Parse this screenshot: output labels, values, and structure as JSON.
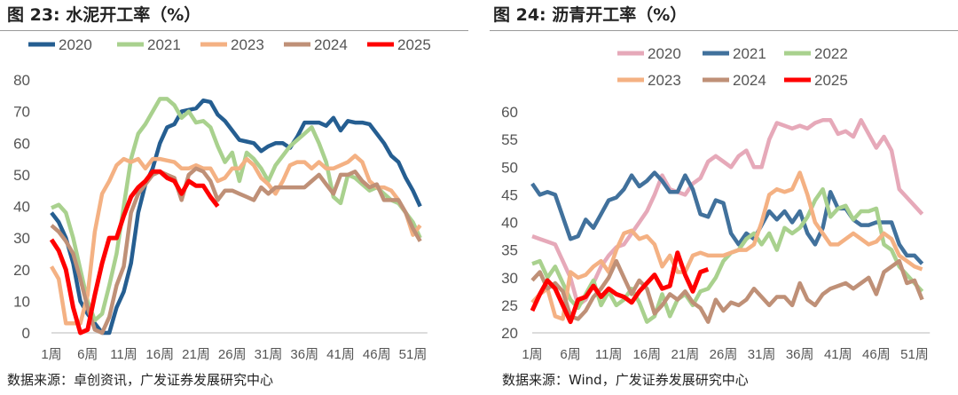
{
  "charts": [
    {
      "title": "图 23:  水泥开工率（%）",
      "source": "数据来源：卓创资讯，广发证券发展研究中心"
    },
    {
      "title": "图 24:  沥青开工率（%）",
      "source": "数据来源：Wind，广发证券发展研究中心"
    }
  ],
  "chart_data": [
    {
      "type": "line",
      "title": "图 23:  水泥开工率（%）",
      "ylim": [
        0,
        80
      ],
      "yticks": [
        0,
        10,
        20,
        30,
        40,
        50,
        60,
        70,
        80
      ],
      "xticks": [
        "1周",
        "6周",
        "11周",
        "16周",
        "21周",
        "26周",
        "31周",
        "36周",
        "41周",
        "46周",
        "51周"
      ],
      "legend": "top",
      "series": [
        {
          "name": "2020",
          "color": "#255e91",
          "values": [
            38,
            35,
            30,
            22,
            10,
            6,
            3,
            0,
            0,
            8,
            13,
            22,
            38,
            47,
            52,
            60,
            65,
            66,
            70,
            70.5,
            71,
            73.5,
            73,
            69,
            67,
            64,
            61,
            60.5,
            60,
            57.5,
            59,
            60,
            60,
            58.5,
            62,
            66.5,
            66.5,
            66.5,
            65.5,
            68,
            64,
            67,
            66.5,
            66.5,
            66,
            63,
            60,
            56,
            54,
            49,
            45,
            40
          ]
        },
        {
          "name": "2021",
          "color": "#a9d18e",
          "values": [
            39.5,
            40.5,
            38,
            30,
            20,
            10,
            4,
            6,
            15,
            25,
            40,
            55,
            63,
            66,
            70,
            74,
            74,
            72,
            68,
            70,
            66.5,
            67,
            65,
            59,
            54,
            57,
            48,
            57,
            55,
            52,
            48,
            53,
            56,
            59,
            61,
            63,
            65,
            60,
            54,
            43,
            41,
            50,
            49,
            47,
            45,
            46,
            44,
            42,
            41,
            38,
            35,
            30
          ]
        },
        {
          "name": "2023",
          "color": "#f4b183",
          "values": [
            21,
            17,
            3,
            3,
            3,
            12,
            32,
            44,
            48,
            53,
            55,
            54,
            55,
            52,
            55,
            55,
            54.5,
            54,
            52,
            52,
            53,
            52,
            52,
            48,
            49,
            52,
            52,
            55,
            53,
            49,
            47,
            44,
            48,
            53,
            54,
            54,
            52,
            54,
            52,
            52,
            53,
            54,
            56,
            54,
            48,
            46,
            46,
            45,
            42,
            38,
            31,
            34
          ]
        },
        {
          "name": "2024",
          "color": "#bf9077",
          "values": [
            34,
            32,
            29,
            25,
            17,
            8,
            1,
            0,
            5,
            15,
            21,
            38,
            44,
            47,
            50,
            51,
            50,
            49,
            42,
            50,
            52,
            51,
            48,
            42,
            45,
            45,
            44,
            43,
            42,
            46,
            44,
            46,
            46,
            46,
            46,
            46,
            48,
            50,
            47,
            44,
            50,
            50,
            51,
            48,
            46,
            47,
            42,
            42,
            42,
            38,
            33,
            29
          ]
        },
        {
          "name": "2025",
          "color": "#ff0000",
          "values": [
            29.5,
            26,
            20,
            8,
            0,
            1,
            12,
            22,
            30,
            30,
            37,
            43,
            46,
            48,
            51,
            51,
            49,
            48,
            44,
            48,
            46.5,
            46.5,
            43,
            40
          ]
        }
      ]
    },
    {
      "type": "line",
      "title": "图 24:  沥青开工率（%）",
      "ylim": [
        20,
        60
      ],
      "yticks": [
        20,
        25,
        30,
        35,
        40,
        45,
        50,
        55,
        60
      ],
      "xticks": [
        "1周",
        "6周",
        "11周",
        "16周",
        "21周",
        "26周",
        "31周",
        "36周",
        "41周",
        "46周",
        "51周"
      ],
      "legend": "top",
      "series": [
        {
          "name": "2020",
          "color": "#e6a9b9",
          "values": [
            37.5,
            37,
            36.5,
            36,
            33,
            30,
            25,
            26,
            29,
            32,
            34,
            35.5,
            36,
            38,
            40,
            42,
            45,
            48.5,
            46,
            45.5,
            45,
            47,
            48,
            51,
            52,
            51,
            50,
            52,
            53,
            50,
            50,
            55,
            58,
            57.5,
            57,
            57.5,
            57,
            58,
            58.5,
            58.5,
            56,
            56.5,
            55.5,
            58.5,
            56,
            53.5,
            55.5,
            53,
            46,
            44.5,
            43,
            41.5
          ]
        },
        {
          "name": "2021",
          "color": "#41719c",
          "values": [
            47,
            45,
            45.5,
            45,
            41,
            37,
            37.5,
            40.5,
            39,
            41.5,
            44,
            44.5,
            46,
            48.5,
            46.5,
            47.5,
            49,
            47.5,
            45.5,
            45.5,
            48.5,
            46,
            41.5,
            41,
            44,
            43.5,
            38,
            36,
            38,
            37,
            39.5,
            42,
            40.5,
            42,
            40,
            42,
            38,
            36,
            39,
            45.5,
            42.5,
            42.5,
            40.5,
            39.5,
            39.5,
            40,
            40,
            40,
            36,
            34,
            34,
            32.5
          ]
        },
        {
          "name": "2022",
          "color": "#a9d18e",
          "values": [
            32.5,
            33,
            30,
            32,
            29,
            26,
            24.5,
            27,
            29.5,
            25,
            27.5,
            25,
            26,
            28,
            25.5,
            22,
            23,
            27,
            23,
            26,
            27,
            25,
            27.5,
            28,
            30,
            33,
            34.5,
            35,
            37,
            38,
            36,
            38,
            35,
            39,
            38,
            39,
            41,
            44,
            46,
            41,
            42.5,
            43,
            40.5,
            42,
            42,
            42.5,
            36,
            35,
            32,
            30.5,
            29,
            27.5
          ]
        },
        {
          "name": "2023",
          "color": "#f4b183",
          "values": [
            25.5,
            27,
            28,
            23,
            22.5,
            31,
            30,
            30.5,
            32,
            33,
            31,
            35,
            38,
            38.5,
            37,
            37.5,
            36,
            32,
            34,
            31,
            31,
            34,
            34.5,
            34,
            34,
            34,
            34.5,
            35,
            35,
            36,
            40,
            45,
            46,
            45.5,
            46,
            49,
            45,
            40,
            38,
            36,
            36,
            37,
            38,
            37,
            36,
            36.5,
            38,
            37,
            34,
            33,
            32,
            31.5
          ]
        },
        {
          "name": "2024",
          "color": "#bf9077",
          "values": [
            29.5,
            31,
            28,
            29,
            27.5,
            23,
            22.5,
            24,
            26.5,
            28,
            30,
            33,
            30,
            27,
            29.5,
            28,
            23.5,
            25,
            27,
            26,
            27.5,
            25.5,
            24.5,
            22,
            26,
            24,
            25.5,
            25,
            26,
            28,
            26.5,
            25,
            26.5,
            26.5,
            25,
            29,
            26,
            25,
            27,
            28,
            28.5,
            29,
            28,
            29,
            30,
            27,
            31,
            32,
            33,
            29,
            29.5,
            26
          ]
        },
        {
          "name": "2025",
          "color": "#ff0000",
          "values": [
            24,
            27,
            29.5,
            28,
            25,
            22,
            26,
            26.5,
            28.5,
            26.5,
            28,
            27,
            26.5,
            25.5,
            27.5,
            29,
            30.5,
            28,
            28.5,
            34.5,
            30.5,
            27.5,
            31,
            31.5
          ]
        }
      ]
    }
  ]
}
